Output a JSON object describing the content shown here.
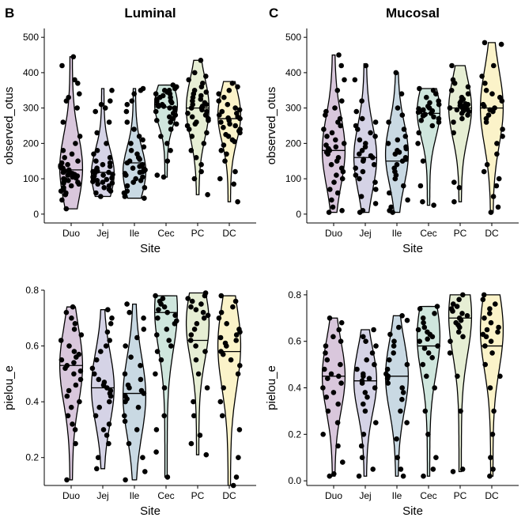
{
  "panel_letters": {
    "left": "B",
    "right": "C"
  },
  "titles": {
    "left": "Luminal",
    "right": "Mucosal"
  },
  "chart_data": [
    {
      "type": "violin",
      "title": "Luminal",
      "xlabel": "Site",
      "ylabel": "observed_otus",
      "categories": [
        "Duo",
        "Jej",
        "Ile",
        "Cec",
        "PC",
        "DC"
      ],
      "ylim": [
        -25,
        525
      ],
      "yticks": [
        0,
        100,
        200,
        300,
        400,
        500
      ],
      "yticklabels": [
        "0",
        "100",
        "200",
        "300",
        "400",
        "500"
      ],
      "fills": [
        "#d9c7dc",
        "#d5d3e6",
        "#c9d9e3",
        "#cfe6dd",
        "#e6eed4",
        "#fbf3c9"
      ],
      "ranges": [
        [
          15,
          445
        ],
        [
          50,
          355
        ],
        [
          45,
          355
        ],
        [
          105,
          365
        ],
        [
          55,
          435
        ],
        [
          35,
          375
        ]
      ],
      "medians": [
        125,
        118,
        145,
        303,
        300,
        270
      ],
      "modes": [
        130,
        115,
        120,
        310,
        300,
        280
      ],
      "points": [
        [
          15,
          40,
          55,
          60,
          65,
          70,
          75,
          80,
          85,
          88,
          90,
          92,
          95,
          98,
          100,
          102,
          105,
          108,
          110,
          112,
          115,
          118,
          120,
          122,
          125,
          128,
          130,
          132,
          135,
          138,
          140,
          145,
          150,
          160,
          170,
          180,
          200,
          220,
          260,
          300,
          320,
          330,
          340,
          370,
          380,
          420,
          445
        ],
        [
          50,
          60,
          65,
          70,
          75,
          80,
          85,
          88,
          90,
          92,
          95,
          98,
          100,
          102,
          105,
          108,
          110,
          112,
          115,
          118,
          120,
          122,
          125,
          130,
          135,
          140,
          145,
          150,
          160,
          170,
          180,
          200,
          230,
          260,
          290,
          300,
          310,
          320,
          350
        ],
        [
          45,
          50,
          60,
          65,
          75,
          80,
          90,
          95,
          100,
          105,
          110,
          115,
          118,
          120,
          125,
          128,
          130,
          135,
          140,
          145,
          150,
          155,
          160,
          170,
          180,
          190,
          200,
          210,
          220,
          240,
          260,
          290,
          310,
          320,
          340,
          350,
          355
        ],
        [
          105,
          110,
          150,
          180,
          200,
          220,
          240,
          255,
          260,
          265,
          270,
          275,
          280,
          285,
          290,
          295,
          300,
          300,
          305,
          305,
          310,
          310,
          315,
          320,
          320,
          325,
          330,
          330,
          335,
          340,
          340,
          345,
          350,
          350,
          355,
          360,
          365
        ],
        [
          55,
          100,
          120,
          140,
          160,
          180,
          200,
          220,
          230,
          240,
          250,
          255,
          260,
          265,
          270,
          275,
          280,
          285,
          290,
          295,
          300,
          300,
          305,
          310,
          310,
          315,
          320,
          325,
          330,
          335,
          340,
          345,
          350,
          360,
          370,
          380,
          390,
          400,
          435
        ],
        [
          35,
          85,
          100,
          120,
          150,
          170,
          180,
          195,
          205,
          210,
          220,
          225,
          230,
          235,
          240,
          245,
          250,
          255,
          260,
          265,
          270,
          272,
          275,
          280,
          285,
          290,
          295,
          300,
          310,
          320,
          330,
          340,
          350,
          360,
          370
        ]
      ]
    },
    {
      "type": "violin",
      "title": "Mucosal",
      "xlabel": "Site",
      "ylabel": "observed_otus",
      "categories": [
        "Duo",
        "Jej",
        "Ile",
        "Cec",
        "PC",
        "DC"
      ],
      "ylim": [
        -25,
        525
      ],
      "yticks": [
        0,
        100,
        200,
        300,
        400,
        500
      ],
      "yticklabels": [
        "0",
        "100",
        "200",
        "300",
        "400",
        "500"
      ],
      "fills": [
        "#d9c7dc",
        "#d5d3e6",
        "#c9d9e3",
        "#cfe6dd",
        "#e6eed4",
        "#fbf3c9"
      ],
      "ranges": [
        [
          5,
          450
        ],
        [
          5,
          425
        ],
        [
          5,
          400
        ],
        [
          25,
          355
        ],
        [
          35,
          420
        ],
        [
          5,
          485
        ]
      ],
      "medians": [
        180,
        160,
        150,
        285,
        300,
        300
      ],
      "modes": [
        180,
        160,
        170,
        290,
        300,
        300
      ],
      "points": [
        [
          5,
          10,
          20,
          40,
          60,
          70,
          90,
          100,
          110,
          120,
          130,
          140,
          150,
          160,
          170,
          175,
          180,
          185,
          190,
          195,
          200,
          210,
          220,
          230,
          240,
          250,
          260,
          270,
          280,
          290,
          300,
          320,
          350,
          380,
          420,
          450
        ],
        [
          5,
          10,
          30,
          50,
          70,
          90,
          100,
          110,
          120,
          130,
          140,
          150,
          155,
          160,
          165,
          170,
          180,
          190,
          200,
          210,
          220,
          230,
          240,
          250,
          260,
          270,
          290,
          320,
          380,
          420
        ],
        [
          5,
          10,
          20,
          40,
          60,
          80,
          100,
          110,
          120,
          130,
          140,
          150,
          155,
          160,
          170,
          175,
          180,
          185,
          190,
          200,
          210,
          220,
          240,
          260,
          280,
          300,
          340,
          400
        ],
        [
          25,
          35,
          80,
          150,
          200,
          230,
          250,
          260,
          265,
          270,
          275,
          278,
          280,
          282,
          285,
          288,
          290,
          292,
          295,
          298,
          300,
          305,
          310,
          315,
          320,
          330,
          340,
          350,
          355
        ],
        [
          35,
          75,
          90,
          230,
          260,
          270,
          280,
          285,
          290,
          292,
          295,
          297,
          300,
          300,
          302,
          305,
          307,
          310,
          312,
          315,
          320,
          325,
          330,
          340,
          350,
          360,
          370,
          380,
          420
        ],
        [
          5,
          20,
          50,
          80,
          100,
          120,
          140,
          170,
          200,
          220,
          240,
          260,
          270,
          280,
          290,
          295,
          300,
          305,
          310,
          320,
          330,
          340,
          350,
          370,
          390,
          420,
          480,
          485
        ]
      ]
    },
    {
      "type": "violin",
      "title": "",
      "xlabel": "Site",
      "ylabel": "pielou_e",
      "categories": [
        "Duo",
        "Jej",
        "Ile",
        "Cec",
        "PC",
        "DC"
      ],
      "ylim": [
        0.1,
        0.8
      ],
      "yticks": [
        0.2,
        0.4,
        0.6,
        0.8
      ],
      "yticklabels": [
        "0.2",
        "0.4",
        "0.6",
        "0.8"
      ],
      "fills": [
        "#d9c7dc",
        "#d5d3e6",
        "#c9d9e3",
        "#cfe6dd",
        "#e6eed4",
        "#fbf3c9"
      ],
      "ranges": [
        [
          0.12,
          0.74
        ],
        [
          0.16,
          0.73
        ],
        [
          0.12,
          0.75
        ],
        [
          0.13,
          0.78
        ],
        [
          0.21,
          0.79
        ],
        [
          0.1,
          0.78
        ]
      ],
      "medians": [
        0.53,
        0.45,
        0.43,
        0.72,
        0.62,
        0.58
      ],
      "modes": [
        0.53,
        0.45,
        0.42,
        0.73,
        0.68,
        0.6
      ],
      "points": [
        [
          0.12,
          0.25,
          0.3,
          0.32,
          0.35,
          0.38,
          0.4,
          0.42,
          0.44,
          0.46,
          0.48,
          0.5,
          0.51,
          0.52,
          0.53,
          0.54,
          0.55,
          0.56,
          0.57,
          0.58,
          0.6,
          0.62,
          0.64,
          0.66,
          0.68,
          0.7,
          0.72,
          0.74
        ],
        [
          0.16,
          0.2,
          0.25,
          0.28,
          0.3,
          0.32,
          0.35,
          0.38,
          0.4,
          0.42,
          0.43,
          0.44,
          0.45,
          0.46,
          0.47,
          0.48,
          0.5,
          0.52,
          0.55,
          0.58,
          0.6,
          0.62,
          0.65,
          0.68,
          0.7,
          0.73
        ],
        [
          0.12,
          0.15,
          0.2,
          0.25,
          0.3,
          0.33,
          0.35,
          0.38,
          0.4,
          0.41,
          0.42,
          0.43,
          0.44,
          0.45,
          0.46,
          0.48,
          0.5,
          0.53,
          0.56,
          0.6,
          0.63,
          0.66,
          0.7,
          0.72,
          0.75
        ],
        [
          0.13,
          0.22,
          0.3,
          0.35,
          0.45,
          0.5,
          0.55,
          0.58,
          0.6,
          0.62,
          0.64,
          0.66,
          0.68,
          0.69,
          0.7,
          0.71,
          0.72,
          0.73,
          0.74,
          0.75,
          0.76,
          0.77,
          0.78
        ],
        [
          0.21,
          0.25,
          0.28,
          0.35,
          0.4,
          0.45,
          0.5,
          0.55,
          0.58,
          0.6,
          0.62,
          0.64,
          0.66,
          0.68,
          0.7,
          0.71,
          0.72,
          0.73,
          0.74,
          0.75,
          0.76,
          0.77,
          0.78,
          0.79
        ],
        [
          0.1,
          0.13,
          0.2,
          0.3,
          0.35,
          0.4,
          0.45,
          0.5,
          0.53,
          0.55,
          0.57,
          0.58,
          0.6,
          0.61,
          0.62,
          0.63,
          0.64,
          0.65,
          0.66,
          0.68,
          0.7,
          0.72,
          0.74,
          0.76,
          0.78
        ]
      ]
    },
    {
      "type": "violin",
      "title": "",
      "xlabel": "Site",
      "ylabel": "pielou_e",
      "categories": [
        "Duo",
        "Jej",
        "Ile",
        "Cec",
        "PC",
        "DC"
      ],
      "ylim": [
        -0.02,
        0.82
      ],
      "yticks": [
        0.0,
        0.2,
        0.4,
        0.6,
        0.8
      ],
      "yticklabels": [
        "0.0",
        "0.2",
        "0.4",
        "0.6",
        "0.8"
      ],
      "fills": [
        "#d9c7dc",
        "#d5d3e6",
        "#c9d9e3",
        "#cfe6dd",
        "#e6eed4",
        "#fbf3c9"
      ],
      "ranges": [
        [
          0.02,
          0.7
        ],
        [
          0.02,
          0.65
        ],
        [
          0.02,
          0.71
        ],
        [
          0.02,
          0.75
        ],
        [
          0.04,
          0.8
        ],
        [
          0.02,
          0.8
        ]
      ],
      "medians": [
        0.45,
        0.43,
        0.45,
        0.58,
        0.7,
        0.58
      ],
      "modes": [
        0.45,
        0.43,
        0.45,
        0.62,
        0.71,
        0.65
      ],
      "points": [
        [
          0.02,
          0.03,
          0.08,
          0.15,
          0.2,
          0.25,
          0.3,
          0.33,
          0.36,
          0.38,
          0.4,
          0.42,
          0.44,
          0.45,
          0.46,
          0.48,
          0.5,
          0.52,
          0.55,
          0.58,
          0.6,
          0.62,
          0.65,
          0.68,
          0.7
        ],
        [
          0.02,
          0.05,
          0.1,
          0.15,
          0.2,
          0.25,
          0.3,
          0.33,
          0.36,
          0.38,
          0.4,
          0.42,
          0.43,
          0.44,
          0.45,
          0.46,
          0.48,
          0.5,
          0.52,
          0.55,
          0.58,
          0.6,
          0.62,
          0.65
        ],
        [
          0.02,
          0.05,
          0.1,
          0.18,
          0.25,
          0.3,
          0.35,
          0.38,
          0.4,
          0.42,
          0.44,
          0.45,
          0.46,
          0.48,
          0.5,
          0.52,
          0.55,
          0.58,
          0.6,
          0.63,
          0.66,
          0.69,
          0.71
        ],
        [
          0.02,
          0.05,
          0.1,
          0.2,
          0.3,
          0.4,
          0.45,
          0.5,
          0.53,
          0.55,
          0.57,
          0.58,
          0.6,
          0.61,
          0.62,
          0.63,
          0.64,
          0.65,
          0.66,
          0.68,
          0.7,
          0.72,
          0.74,
          0.75
        ],
        [
          0.04,
          0.05,
          0.3,
          0.45,
          0.55,
          0.6,
          0.62,
          0.64,
          0.66,
          0.67,
          0.68,
          0.69,
          0.7,
          0.71,
          0.72,
          0.73,
          0.74,
          0.75,
          0.76,
          0.78,
          0.8
        ],
        [
          0.02,
          0.05,
          0.1,
          0.2,
          0.3,
          0.4,
          0.45,
          0.5,
          0.55,
          0.58,
          0.6,
          0.62,
          0.63,
          0.64,
          0.65,
          0.66,
          0.68,
          0.7,
          0.72,
          0.74,
          0.76,
          0.78,
          0.8
        ]
      ]
    }
  ]
}
